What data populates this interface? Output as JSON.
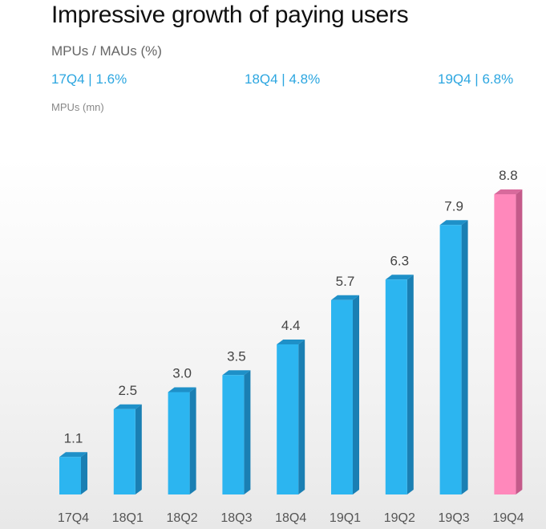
{
  "title": "Impressive growth of paying users",
  "subtitle": "MPUs / MAUs (%)",
  "ratios": [
    "17Q4 | 1.6%",
    "18Q4 | 4.8%",
    "19Q4 | 6.8%"
  ],
  "units": "MPUs (mn)",
  "colors": {
    "bar": "#2cb5f0",
    "bar_side": "#1a7fb3",
    "bar_top": "#1e90c8",
    "highlight": "#ff88bb",
    "highlight_side": "#c45a8a",
    "highlight_top": "#d86a9c",
    "accent_text": "#2ca6e0"
  },
  "chart_data": {
    "type": "bar",
    "categories": [
      "17Q4",
      "18Q1",
      "18Q2",
      "18Q3",
      "18Q4",
      "19Q1",
      "19Q2",
      "19Q3",
      "19Q4"
    ],
    "values": [
      1.1,
      2.5,
      3.0,
      3.5,
      4.4,
      5.7,
      6.3,
      7.9,
      8.8
    ],
    "data_labels": [
      "1.1",
      "2.5",
      "3.0",
      "3.5",
      "4.4",
      "5.7",
      "6.3",
      "7.9",
      "8.8"
    ],
    "highlight_index": 8,
    "title": "Impressive growth of paying users",
    "ylabel": "MPUs (mn)",
    "ylim": [
      0,
      8.8
    ],
    "grid": false,
    "legend": "none"
  }
}
